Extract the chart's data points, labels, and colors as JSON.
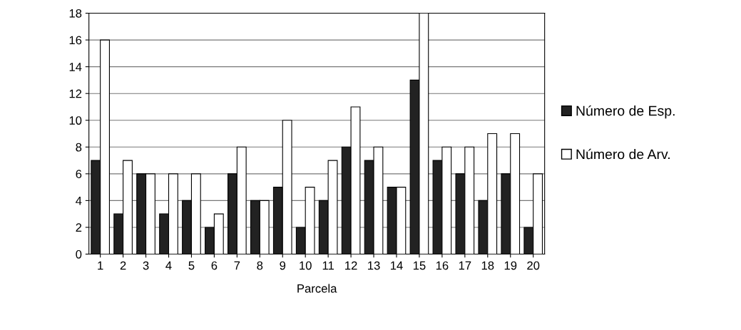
{
  "chart_data": {
    "type": "bar",
    "xlabel": "Parcela",
    "categories": [
      "1",
      "2",
      "3",
      "4",
      "5",
      "6",
      "7",
      "8",
      "9",
      "10",
      "11",
      "12",
      "13",
      "14",
      "15",
      "16",
      "17",
      "18",
      "19",
      "20"
    ],
    "series": [
      {
        "name": "Número de Esp.",
        "color": "#222222",
        "values": [
          7,
          3,
          6,
          3,
          4,
          2,
          6,
          4,
          5,
          2,
          4,
          8,
          7,
          5,
          13,
          7,
          6,
          4,
          6,
          2
        ]
      },
      {
        "name": "Número de Arv.",
        "color": "#ffffff",
        "values": [
          16,
          7,
          6,
          6,
          6,
          3,
          8,
          4,
          10,
          5,
          7,
          11,
          8,
          5,
          18,
          8,
          8,
          9,
          9,
          6
        ]
      }
    ],
    "ylim": [
      0,
      18
    ],
    "yticks": [
      0,
      2,
      4,
      6,
      8,
      10,
      12,
      14,
      16,
      18
    ],
    "grid": "y",
    "legend": "right"
  }
}
